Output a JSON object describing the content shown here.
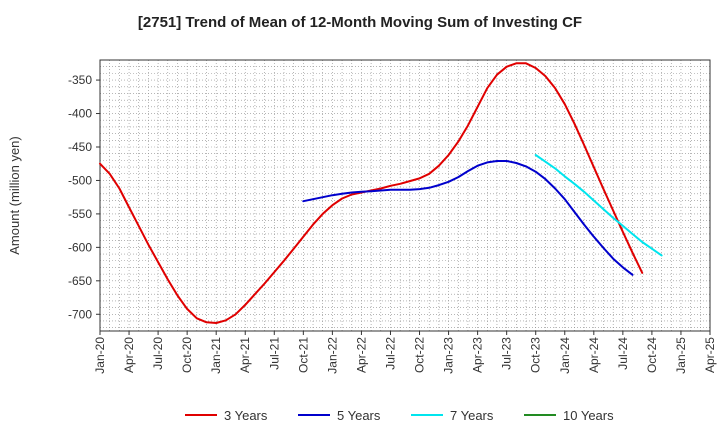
{
  "chart_data": {
    "type": "line",
    "title": "[2751]  Trend of Mean of 12-Month Moving Sum of Investing CF",
    "xlabel": "",
    "ylabel": "Amount (million yen)",
    "ylim": [
      -725,
      -320
    ],
    "yticks": [
      -350,
      -400,
      -450,
      -500,
      -550,
      -600,
      -650,
      -700
    ],
    "ytick_labels": [
      "-350",
      "-400",
      "-450",
      "-500",
      "-550",
      "-600",
      "-650",
      "-700"
    ],
    "xtick_labels": [
      "Jan-20",
      "Apr-20",
      "Jul-20",
      "Oct-20",
      "Jan-21",
      "Apr-21",
      "Jul-21",
      "Oct-21",
      "Jan-22",
      "Apr-22",
      "Jul-22",
      "Oct-22",
      "Jan-23",
      "Apr-23",
      "Jul-23",
      "Oct-23",
      "Jan-24",
      "Apr-24",
      "Jul-24",
      "Oct-24",
      "Jan-25",
      "Apr-25"
    ],
    "grid": true,
    "legend_position": "bottom",
    "series": [
      {
        "name": "3 Years",
        "color": "#e00000",
        "start_month_index": 0,
        "values": [
          -475,
          -490,
          -512,
          -540,
          -568,
          -596,
          -622,
          -648,
          -672,
          -692,
          -706,
          -712,
          -713,
          -709,
          -700,
          -686,
          -670,
          -654,
          -637,
          -620,
          -602,
          -584,
          -566,
          -550,
          -537,
          -527,
          -521,
          -518,
          -515,
          -512,
          -508,
          -505,
          -501,
          -497,
          -490,
          -478,
          -462,
          -442,
          -418,
          -390,
          -362,
          -342,
          -330,
          -325,
          -325,
          -332,
          -344,
          -362,
          -386,
          -415,
          -447,
          -480,
          -513,
          -545,
          -577,
          -608,
          -638
        ]
      },
      {
        "name": "5 Years",
        "color": "#0000cc",
        "start_month_index": 21,
        "values": [
          -531,
          -528,
          -525,
          -522,
          -520,
          -518,
          -517,
          -516,
          -515,
          -514,
          -514,
          -514,
          -513,
          -511,
          -507,
          -502,
          -495,
          -486,
          -478,
          -473,
          -471,
          -471,
          -474,
          -479,
          -487,
          -498,
          -512,
          -528,
          -547,
          -566,
          -584,
          -601,
          -617,
          -630,
          -641
        ]
      },
      {
        "name": "7 Years",
        "color": "#00e5ee",
        "start_month_index": 45,
        "values": [
          -462,
          -472,
          -482,
          -494,
          -505,
          -517,
          -530,
          -543,
          -556,
          -568,
          -580,
          -592,
          -602,
          -612
        ]
      },
      {
        "name": "10 Years",
        "color": "#228b22",
        "start_month_index": 0,
        "values": []
      }
    ]
  }
}
